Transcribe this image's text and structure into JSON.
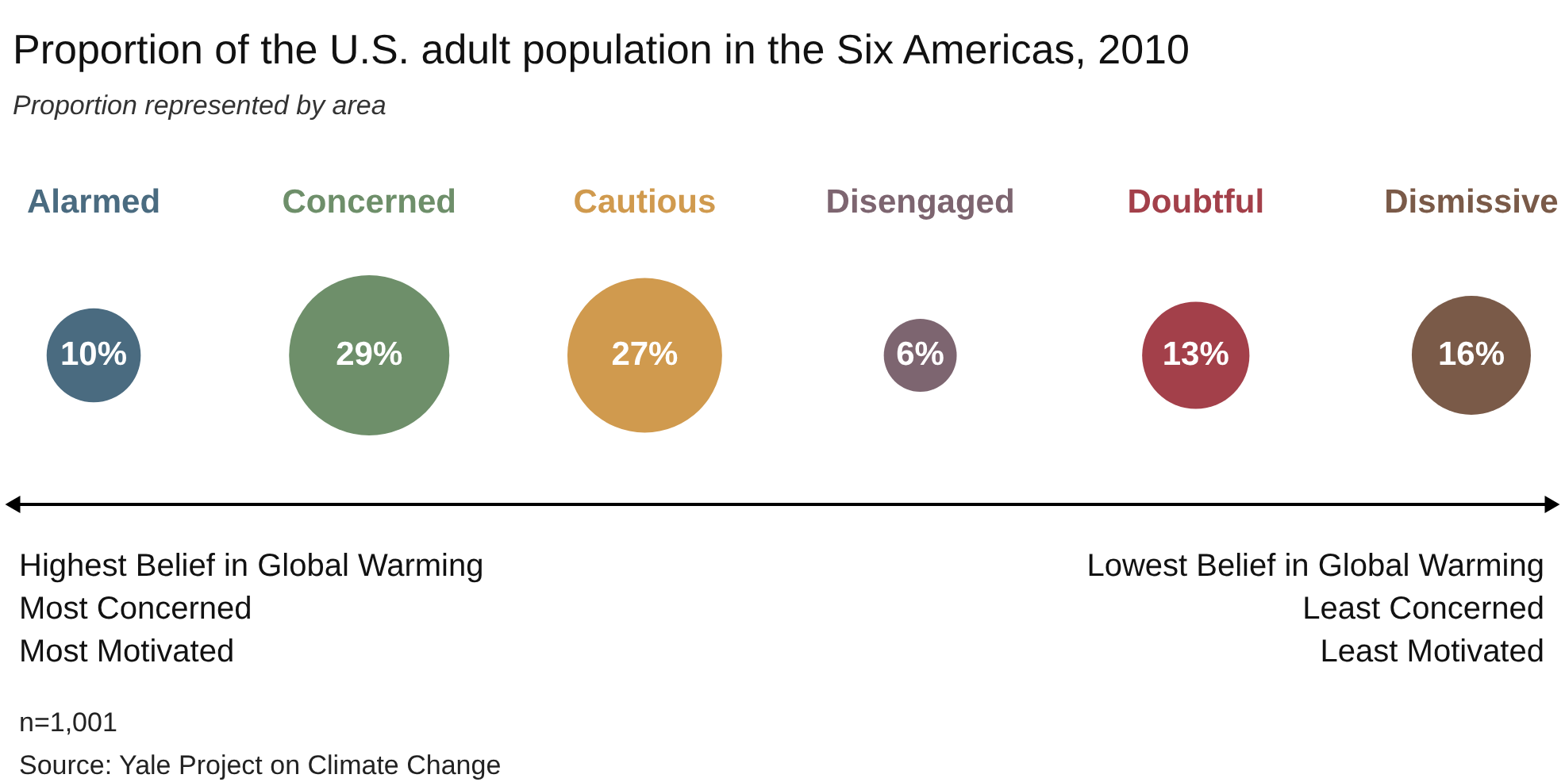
{
  "chart_data": {
    "type": "other",
    "title": "Proportion of the U.S. adult population in the Six Americas, 2010",
    "subtitle": "Proportion represented by area",
    "categories": [
      "Alarmed",
      "Concerned",
      "Cautious",
      "Disengaged",
      "Doubtful",
      "Dismissive"
    ],
    "values": [
      10,
      29,
      27,
      6,
      13,
      16
    ],
    "colors": [
      "#4a6b80",
      "#6e8f6a",
      "#d09a4e",
      "#7d6570",
      "#a3404a",
      "#7a5a48"
    ],
    "value_labels": [
      "10%",
      "29%",
      "27%",
      "6%",
      "13%",
      "16%"
    ],
    "annotations": [
      "Highest Belief in Global Warming",
      "Most Concerned",
      "Most Motivated",
      "Lowest Belief in Global Warming",
      "Least Concerned",
      "Least Motivated",
      "n=1,001",
      "Source: Yale Project on Climate Change"
    ]
  }
}
